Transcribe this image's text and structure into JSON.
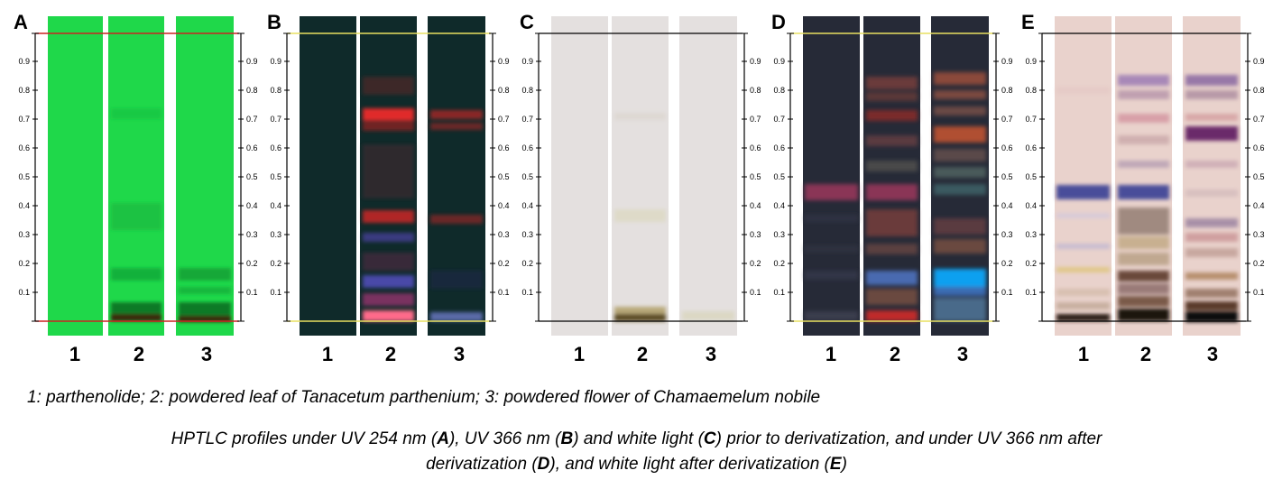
{
  "panels": [
    {
      "letter": "A",
      "lanes": [
        "1",
        "2",
        "3"
      ]
    },
    {
      "letter": "B",
      "lanes": [
        "1",
        "2",
        "3"
      ]
    },
    {
      "letter": "C",
      "lanes": [
        "1",
        "2",
        "3"
      ]
    },
    {
      "letter": "D",
      "lanes": [
        "1",
        "2",
        "3"
      ]
    },
    {
      "letter": "E",
      "lanes": [
        "1",
        "2",
        "3"
      ]
    }
  ],
  "rf_ticks": [
    "0.1",
    "0.2",
    "0.3",
    "0.4",
    "0.5",
    "0.6",
    "0.7",
    "0.8",
    "0.9"
  ],
  "legend_text": "1: parthenolide; 2: powdered leaf of Tanacetum parthenium; 3: powdered flower of Chamaemelum nobile",
  "caption": {
    "line1_a": "HPTLC profiles under UV 254 nm (",
    "line1_A": "A",
    "line1_b": "), UV 366 nm (",
    "line1_B": "B",
    "line1_c": ") and white light (",
    "line1_C": "C",
    "line1_d": ") prior to derivatization, and under UV 366 nm after",
    "line2_a": "derivatization (",
    "line2_D": "D",
    "line2_b": "), and white light after derivatization (",
    "line2_E": "E",
    "line2_c": ")"
  },
  "colors": {
    "uv254_plate": "#1fd84a",
    "uv366_plate": "#0f2a2a",
    "white_plate": "#e4e0df",
    "uv366_deriv_plate": "#262a37",
    "white_deriv_plate": "#e9d2cc",
    "line_red": "#cc2222",
    "line_yellow": "#e8e060"
  }
}
